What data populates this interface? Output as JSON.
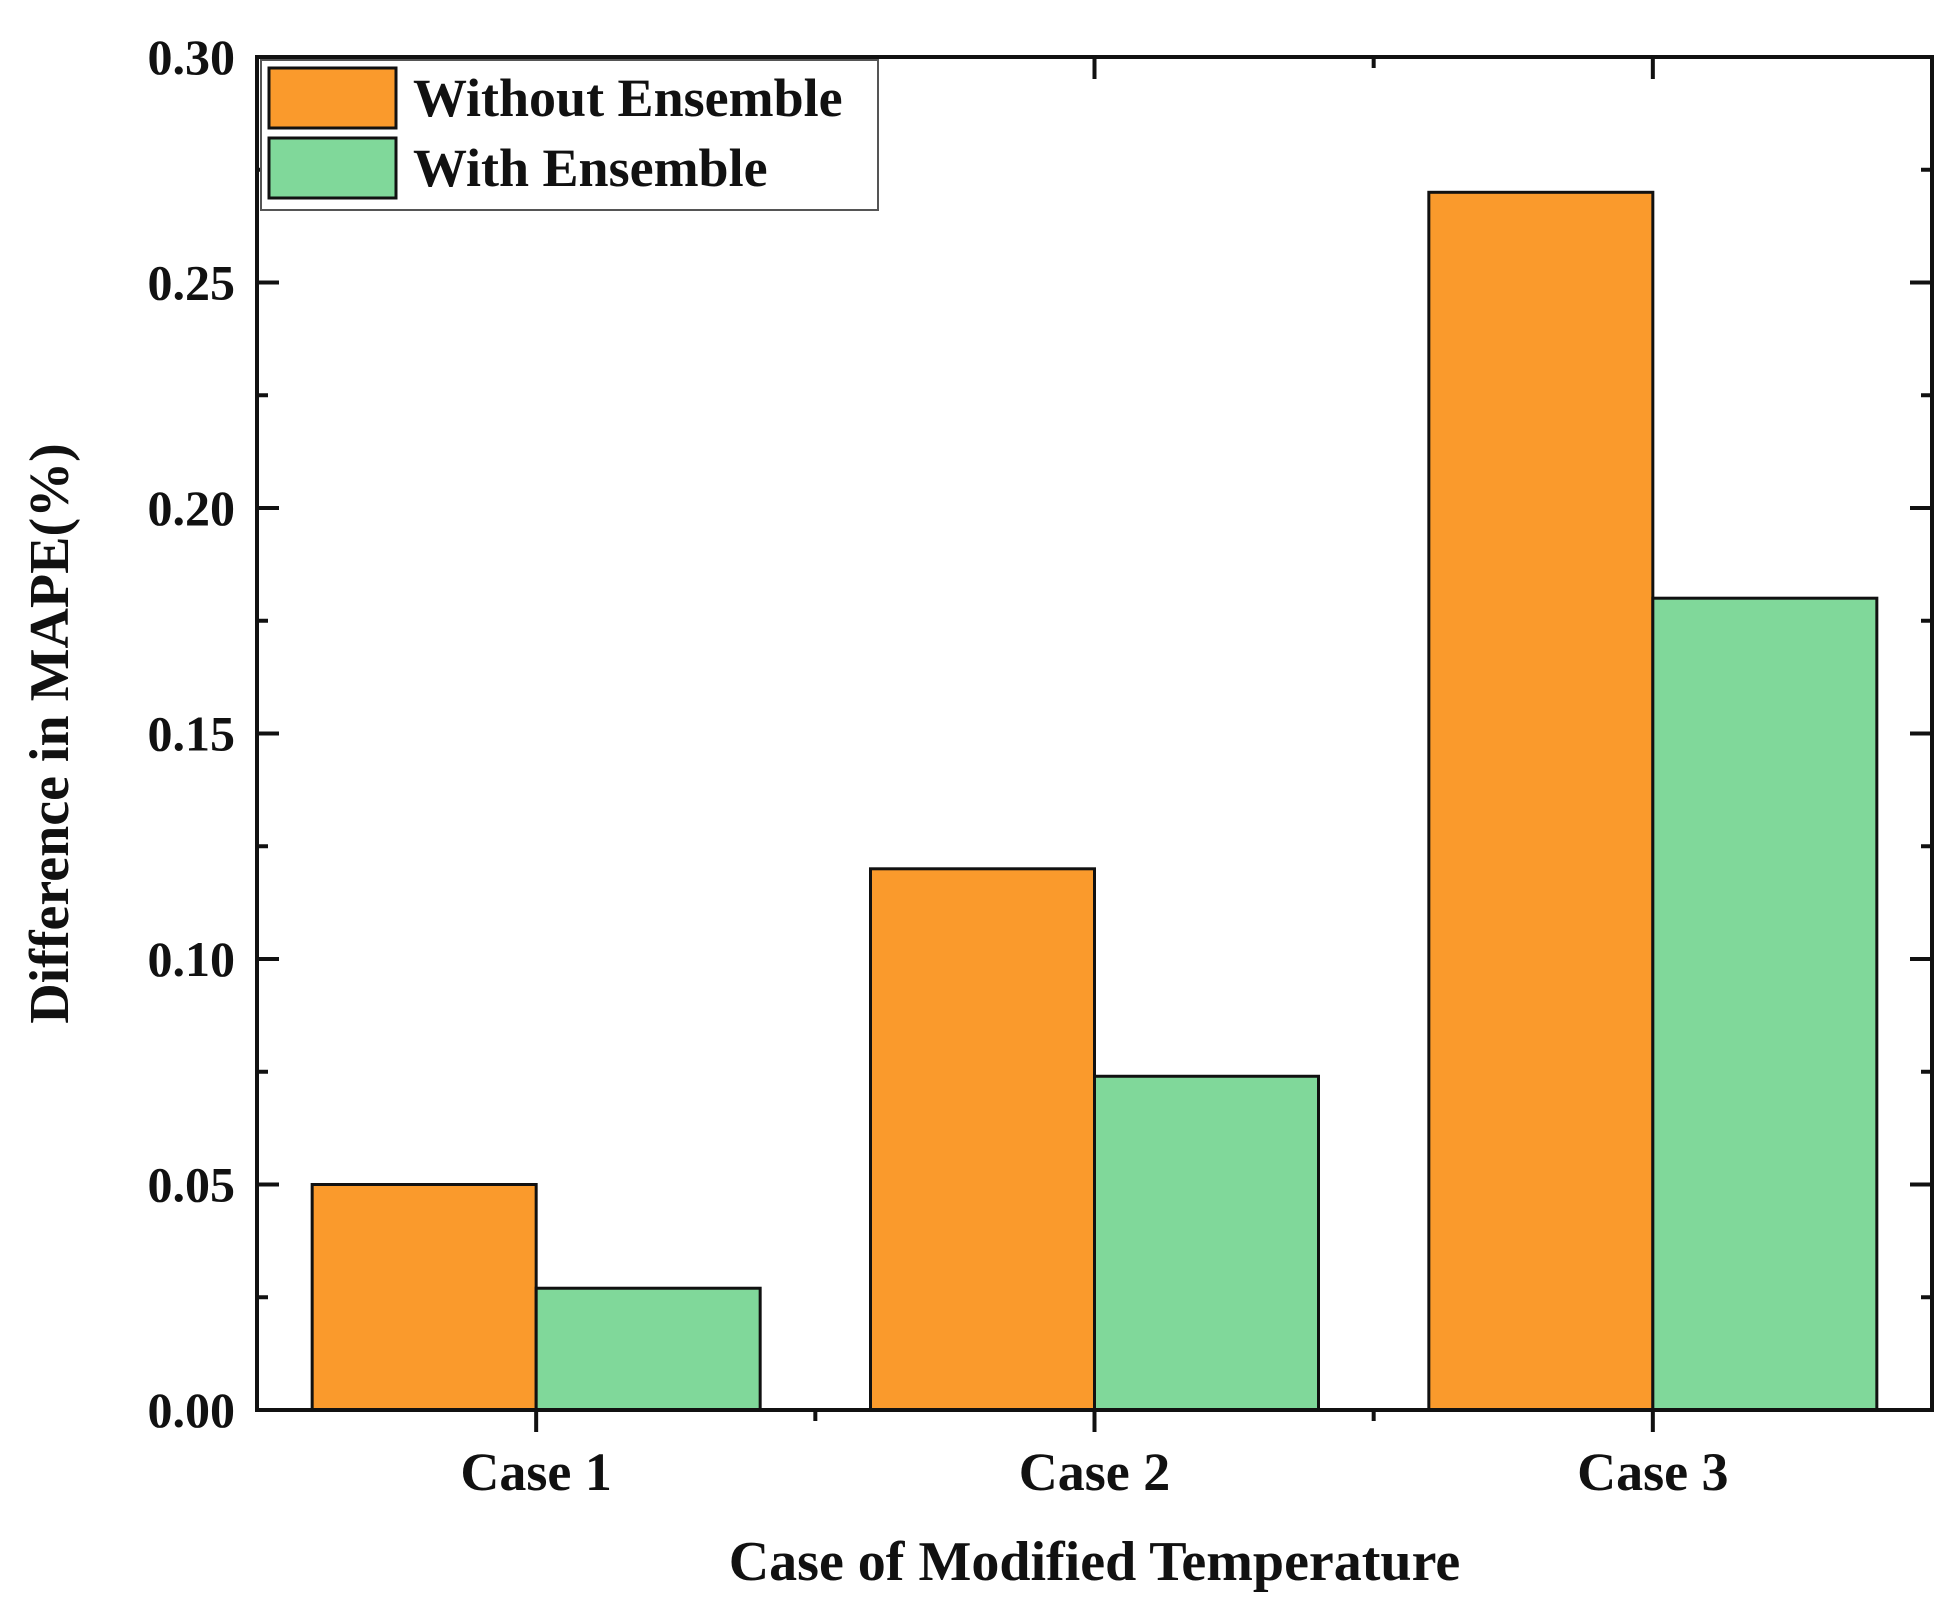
{
  "chart_data": {
    "type": "bar",
    "title": "",
    "xlabel": "Case of Modified Temperature",
    "ylabel": "Difference in MAPE(%)",
    "categories": [
      "Case 1",
      "Case 2",
      "Case 3"
    ],
    "series": [
      {
        "name": "Without Ensemble",
        "color": "#FA9A2C",
        "values": [
          0.05,
          0.12,
          0.27
        ]
      },
      {
        "name": "With Ensemble",
        "color": "#80D89A",
        "values": [
          0.027,
          0.074,
          0.18
        ]
      }
    ],
    "ylim": [
      0,
      0.3
    ],
    "yticks": [
      "0.00",
      "0.05",
      "0.10",
      "0.15",
      "0.20",
      "0.25",
      "0.30"
    ],
    "grid": false,
    "legend_position": "top-left"
  }
}
